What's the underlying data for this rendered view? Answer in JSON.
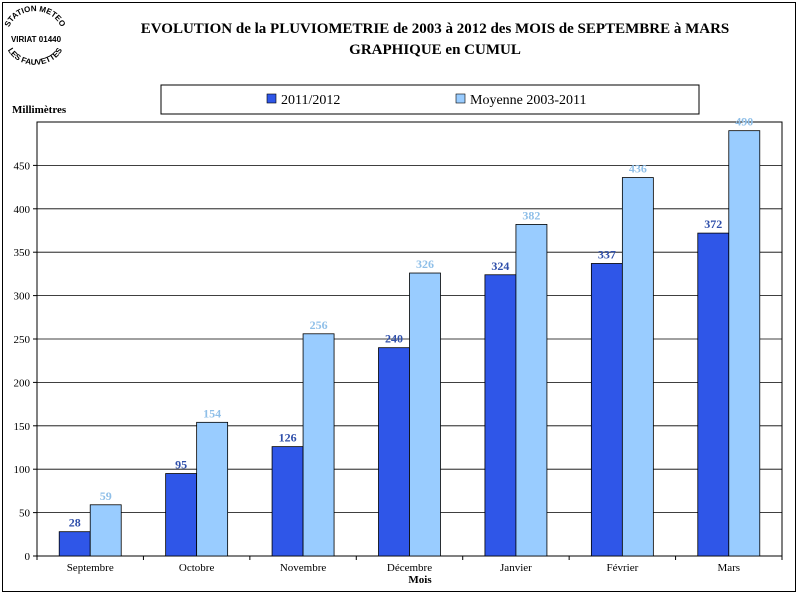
{
  "logo": {
    "line1": "STATION METEO",
    "line2": "VIRIAT 01440",
    "line3": "LES FAUVETTES"
  },
  "chart_data": {
    "type": "bar",
    "title": "EVOLUTION de la PLUVIOMETRIE de 2003 à 2012 des MOIS de SEPTEMBRE à MARS",
    "subtitle": "GRAPHIQUE en CUMUL",
    "xlabel": "Mois",
    "ylabel": "Millimètres",
    "ylim": [
      0,
      500
    ],
    "yticks": [
      0,
      50,
      100,
      150,
      200,
      250,
      300,
      350,
      400,
      450
    ],
    "grid": true,
    "legend_position": "top",
    "categories": [
      "Septembre",
      "Octobre",
      "Novembre",
      "Décembre",
      "Janvier",
      "Février",
      "Mars"
    ],
    "series": [
      {
        "name": "2011/2012",
        "color": "#2f56e8",
        "label_color": "#2f4faa",
        "values": [
          28,
          95,
          126,
          240,
          324,
          337,
          372
        ]
      },
      {
        "name": "Moyenne 2003-2011",
        "color": "#99ccff",
        "label_color": "#8fbfe8",
        "values": [
          59,
          154,
          256,
          326,
          382,
          436,
          490
        ]
      }
    ]
  }
}
